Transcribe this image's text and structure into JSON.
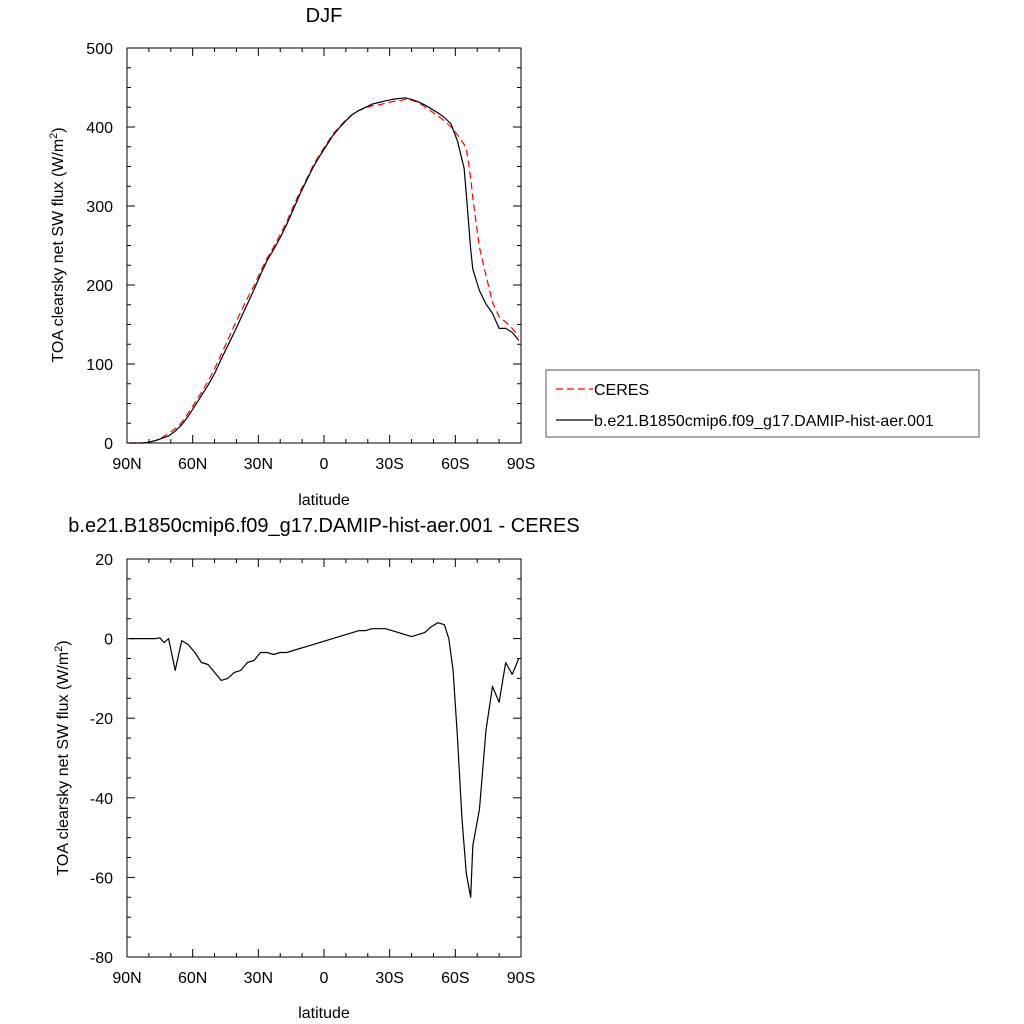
{
  "chart_data": [
    {
      "type": "line",
      "title": "DJF",
      "xlabel": "latitude",
      "ylabel": "TOA clearsky net SW flux (W/m²)",
      "ylabel_parts": {
        "main": "TOA clearsky net SW flux (W/m",
        "sup": "2",
        "tail": ")"
      },
      "xlim": [
        90,
        -90
      ],
      "ylim": [
        0,
        500
      ],
      "x_ticks": [
        90,
        60,
        30,
        0,
        -30,
        -60,
        -90
      ],
      "x_tick_labels": [
        "90N",
        "60N",
        "30N",
        "0",
        "30S",
        "60S",
        "90S"
      ],
      "y_ticks": [
        0,
        100,
        200,
        300,
        400,
        500
      ],
      "y_tick_labels": [
        "0",
        "100",
        "200",
        "300",
        "400",
        "500"
      ],
      "grid": false,
      "legend_placement": "right",
      "series": [
        {
          "name": "CERES",
          "style": "dashed",
          "color": "#ff0000",
          "x": [
            89,
            86,
            83,
            80,
            77,
            74,
            71,
            68,
            65,
            62,
            59,
            56,
            53,
            50,
            47,
            44,
            41,
            38,
            35,
            32,
            29,
            26,
            23,
            20,
            17,
            14,
            11,
            8,
            5,
            2,
            -1,
            -4,
            -7,
            -10,
            -13,
            -16,
            -19,
            -22,
            -25,
            -28,
            -31,
            -34,
            -37,
            -40,
            -43,
            -46,
            -49,
            -52,
            -55,
            -58,
            -61,
            -64,
            -65,
            -66,
            -67,
            -68,
            -71,
            -74,
            -77,
            -80,
            -83,
            -86,
            -89
          ],
          "y": [
            0,
            0,
            0,
            1,
            3,
            7,
            12,
            18,
            26,
            38,
            51,
            64,
            78,
            94,
            112,
            130,
            149,
            166,
            183,
            199,
            217,
            234,
            248,
            264,
            280,
            300,
            318,
            334,
            351,
            365,
            378,
            391,
            400,
            409,
            416,
            421,
            424,
            427,
            428,
            430,
            432,
            433,
            435,
            434,
            431,
            426,
            420,
            414,
            408,
            400,
            390,
            378,
            372,
            355,
            335,
            310,
            248,
            212,
            178,
            160,
            153,
            145,
            135
          ]
        },
        {
          "name": "b.e21.B1850cmip6.f09_g17.DAMIP-hist-aer.001",
          "style": "solid",
          "color": "#000000",
          "x": [
            89,
            86,
            83,
            80,
            77,
            74,
            71,
            68,
            65,
            62,
            59,
            56,
            53,
            50,
            47,
            44,
            41,
            38,
            35,
            32,
            29,
            26,
            23,
            20,
            17,
            14,
            11,
            8,
            5,
            2,
            -1,
            -4,
            -7,
            -10,
            -13,
            -16,
            -19,
            -22,
            -25,
            -28,
            -31,
            -34,
            -37,
            -40,
            -43,
            -46,
            -49,
            -52,
            -55,
            -58,
            -61,
            -64,
            -65,
            -66,
            -67,
            -68,
            -71,
            -74,
            -77,
            -80,
            -83,
            -86,
            -89
          ],
          "y": [
            0,
            0,
            0,
            1,
            3,
            6,
            9,
            15,
            23,
            34,
            47,
            60,
            73,
            88,
            106,
            123,
            140,
            158,
            176,
            194,
            213,
            231,
            245,
            260,
            277,
            296,
            315,
            332,
            349,
            363,
            376,
            389,
            399,
            408,
            416,
            421,
            425,
            429,
            431,
            433,
            435,
            436,
            437,
            435,
            432,
            428,
            423,
            418,
            412,
            404,
            382,
            348,
            315,
            280,
            245,
            220,
            193,
            176,
            164,
            145,
            145,
            140,
            130
          ]
        }
      ]
    },
    {
      "type": "line",
      "title": "b.e21.B1850cmip6.f09_g17.DAMIP-hist-aer.001 - CERES",
      "xlabel": "latitude",
      "ylabel": "TOA clearsky net SW flux (W/m²)",
      "ylabel_parts": {
        "main": "TOA clearsky net SW flux (W/m",
        "sup": "2",
        "tail": ")"
      },
      "xlim": [
        90,
        -90
      ],
      "ylim": [
        -80,
        20
      ],
      "x_ticks": [
        90,
        60,
        30,
        0,
        -30,
        -60,
        -90
      ],
      "x_tick_labels": [
        "90N",
        "60N",
        "30N",
        "0",
        "30S",
        "60S",
        "90S"
      ],
      "y_ticks": [
        -80,
        -60,
        -40,
        -20,
        0,
        20
      ],
      "y_tick_labels": [
        "-80",
        "-60",
        "-40",
        "-20",
        "0",
        "20"
      ],
      "grid": false,
      "series": [
        {
          "name": "",
          "style": "solid",
          "color": "#000000",
          "x": [
            89,
            86,
            83,
            80,
            77,
            75,
            73,
            71,
            68,
            65,
            62,
            59,
            56,
            53,
            50,
            47,
            44,
            41,
            38,
            35,
            32,
            29,
            26,
            23,
            20,
            17,
            14,
            11,
            8,
            5,
            2,
            -1,
            -4,
            -7,
            -10,
            -13,
            -16,
            -19,
            -22,
            -25,
            -28,
            -31,
            -34,
            -37,
            -40,
            -43,
            -46,
            -49,
            -52,
            -55,
            -57,
            -59,
            -61,
            -63,
            -65,
            -67,
            -68,
            -71,
            -74,
            -77,
            -80,
            -83,
            -86,
            -89
          ],
          "y": [
            0,
            0,
            0,
            0,
            0,
            0.2,
            -1,
            0,
            -8,
            -0.5,
            -1.5,
            -3.5,
            -6,
            -6.5,
            -8.5,
            -10.5,
            -10,
            -8.5,
            -8,
            -6,
            -5.5,
            -3.5,
            -3.5,
            -4,
            -3.5,
            -3.5,
            -3,
            -2.5,
            -2,
            -1.5,
            -1,
            -0.5,
            0,
            0.5,
            1,
            1.5,
            2,
            2,
            2.5,
            2.5,
            2.5,
            2,
            1.5,
            1,
            0.5,
            1,
            1.5,
            3,
            4,
            3.5,
            0,
            -8,
            -25,
            -45,
            -59,
            -65,
            -52,
            -43,
            -23,
            -12,
            -16,
            -6,
            -9,
            -5
          ]
        }
      ]
    }
  ]
}
